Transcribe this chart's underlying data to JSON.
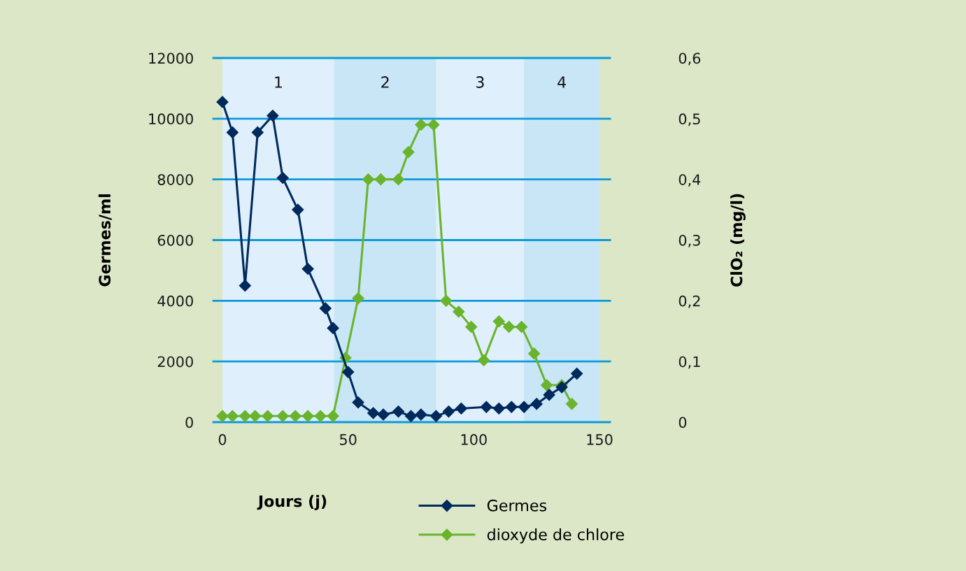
{
  "chart_data": {
    "type": "line",
    "xlabel": "Jours (j)",
    "ylabel": "Germes/ml",
    "y2label": "ClO₂ (mg/l)",
    "xlim": [
      -3.6,
      154.2
    ],
    "xticks": [
      0,
      50,
      100,
      150
    ],
    "ylim": [
      0,
      12000
    ],
    "yticks": [
      0,
      2000,
      4000,
      6000,
      8000,
      10000,
      12000
    ],
    "y2lim": [
      0,
      0.6
    ],
    "y2ticks": [
      {
        "value": 0,
        "label": "0"
      },
      {
        "value": 0.1,
        "label": "0,1"
      },
      {
        "value": 0.2,
        "label": "0,2"
      },
      {
        "value": 0.3,
        "label": "0,3"
      },
      {
        "value": 0.4,
        "label": "0,4"
      },
      {
        "value": 0.5,
        "label": "0,5"
      },
      {
        "value": 0.6,
        "label": "0,6"
      }
    ],
    "grid": "y",
    "legend": "bottom",
    "marker": "diamond",
    "line_style": "solid",
    "bands": [
      {
        "axis": "x",
        "from": 0,
        "to": 44.5,
        "label": "1",
        "color": "#dff0fc"
      },
      {
        "axis": "x",
        "from": 44.5,
        "to": 85,
        "label": "2",
        "color": "#c9e6f7"
      },
      {
        "axis": "x",
        "from": 85,
        "to": 120,
        "label": "3",
        "color": "#dff0fc"
      },
      {
        "axis": "x",
        "from": 120,
        "to": 150,
        "label": "4",
        "color": "#c9e6f7"
      }
    ],
    "series": [
      {
        "name": "Germes",
        "color": "#002a5c",
        "x": [
          0,
          4,
          9,
          14,
          20,
          24,
          30,
          34,
          41,
          44,
          50,
          54,
          60,
          64,
          70,
          75,
          79,
          85,
          90,
          95,
          105,
          110,
          115,
          120,
          125,
          130,
          135,
          141
        ],
        "values": [
          10550,
          9550,
          4500,
          9550,
          10100,
          8050,
          7000,
          5050,
          3750,
          3100,
          1650,
          650,
          300,
          250,
          350,
          200,
          250,
          200,
          350,
          450,
          500,
          450,
          500,
          500,
          600,
          900,
          1150,
          1600
        ]
      },
      {
        "name": "dioxyde de chlore",
        "color": "#6ab42d",
        "axis": "y2",
        "x": [
          0,
          4,
          9,
          13,
          18,
          24,
          29,
          34,
          39,
          44,
          49,
          54,
          58,
          63,
          70,
          74,
          79,
          84,
          89,
          94,
          99,
          104,
          110,
          114,
          119,
          124,
          129,
          135,
          139
        ],
        "values": [
          0.01,
          0.01,
          0.01,
          0.01,
          0.01,
          0.01,
          0.01,
          0.01,
          0.01,
          0.01,
          0.106,
          0.204,
          0.4,
          0.4,
          0.4,
          0.445,
          0.49,
          0.49,
          0.2,
          0.182,
          0.157,
          0.102,
          0.166,
          0.157,
          0.157,
          0.113,
          0.061,
          0.061,
          0.03
        ]
      }
    ]
  }
}
